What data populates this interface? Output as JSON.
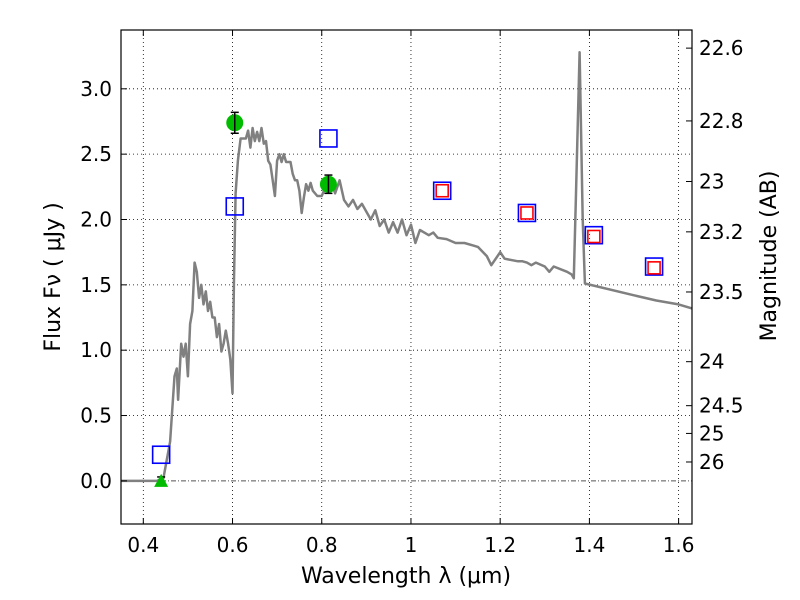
{
  "chart_data": {
    "type": "scatter",
    "xlabel": "Wavelength  λ (μm)",
    "ylabel": "Flux  Fν  ( μJy )",
    "y2label": "Magnitude (AB)",
    "xlim": [
      0.35,
      1.63
    ],
    "ylim": [
      -0.33,
      3.45
    ],
    "grid": true,
    "x_ticks": [
      {
        "v": 0.4,
        "label": "0.4"
      },
      {
        "v": 0.6,
        "label": "0.6"
      },
      {
        "v": 0.8,
        "label": "0.8"
      },
      {
        "v": 1.0,
        "label": "1"
      },
      {
        "v": 1.2,
        "label": "1.2"
      },
      {
        "v": 1.4,
        "label": "1.4"
      },
      {
        "v": 1.6,
        "label": "1.6"
      }
    ],
    "y_ticks": [
      {
        "v": 0.0,
        "label": "0.0"
      },
      {
        "v": 0.5,
        "label": "0.5"
      },
      {
        "v": 1.0,
        "label": "1.0"
      },
      {
        "v": 1.5,
        "label": "1.5"
      },
      {
        "v": 2.0,
        "label": "2.0"
      },
      {
        "v": 2.5,
        "label": "2.5"
      },
      {
        "v": 3.0,
        "label": "3.0"
      }
    ],
    "y2_ticks": [
      {
        "mag": 22.6,
        "label": "22.6"
      },
      {
        "mag": 22.8,
        "label": "22.8"
      },
      {
        "mag": 23.0,
        "label": "23"
      },
      {
        "mag": 23.2,
        "label": "23.2"
      },
      {
        "mag": 23.5,
        "label": "23.5"
      },
      {
        "mag": 24.0,
        "label": "24"
      },
      {
        "mag": 24.5,
        "label": "24.5"
      },
      {
        "mag": 25.0,
        "label": "25"
      },
      {
        "mag": 26.0,
        "label": "26"
      }
    ],
    "series": [
      {
        "name": "model_sed",
        "kind": "line",
        "color": "#808080",
        "points": [
          [
            0.35,
            0.0
          ],
          [
            0.43,
            0.0
          ],
          [
            0.445,
            0.02
          ],
          [
            0.46,
            0.3
          ],
          [
            0.47,
            0.8
          ],
          [
            0.475,
            0.86
          ],
          [
            0.478,
            0.62
          ],
          [
            0.485,
            1.05
          ],
          [
            0.49,
            0.95
          ],
          [
            0.495,
            1.05
          ],
          [
            0.5,
            0.8
          ],
          [
            0.505,
            1.2
          ],
          [
            0.51,
            1.3
          ],
          [
            0.515,
            1.67
          ],
          [
            0.52,
            1.6
          ],
          [
            0.525,
            1.4
          ],
          [
            0.53,
            1.5
          ],
          [
            0.535,
            1.35
          ],
          [
            0.54,
            1.45
          ],
          [
            0.545,
            1.3
          ],
          [
            0.55,
            1.37
          ],
          [
            0.555,
            1.25
          ],
          [
            0.56,
            1.25
          ],
          [
            0.565,
            1.1
          ],
          [
            0.57,
            1.2
          ],
          [
            0.575,
            0.99
          ],
          [
            0.58,
            1.05
          ],
          [
            0.585,
            1.15
          ],
          [
            0.59,
            1.05
          ],
          [
            0.595,
            0.93
          ],
          [
            0.6,
            0.67
          ],
          [
            0.603,
            1.5
          ],
          [
            0.607,
            2.2
          ],
          [
            0.612,
            2.45
          ],
          [
            0.618,
            2.62
          ],
          [
            0.625,
            2.62
          ],
          [
            0.63,
            2.62
          ],
          [
            0.635,
            2.68
          ],
          [
            0.64,
            2.55
          ],
          [
            0.645,
            2.7
          ],
          [
            0.65,
            2.6
          ],
          [
            0.655,
            2.67
          ],
          [
            0.66,
            2.6
          ],
          [
            0.665,
            2.7
          ],
          [
            0.67,
            2.58
          ],
          [
            0.675,
            2.6
          ],
          [
            0.68,
            2.45
          ],
          [
            0.685,
            2.42
          ],
          [
            0.69,
            2.3
          ],
          [
            0.695,
            2.18
          ],
          [
            0.7,
            2.45
          ],
          [
            0.705,
            2.5
          ],
          [
            0.71,
            2.44
          ],
          [
            0.715,
            2.5
          ],
          [
            0.72,
            2.44
          ],
          [
            0.73,
            2.44
          ],
          [
            0.735,
            2.35
          ],
          [
            0.74,
            2.3
          ],
          [
            0.745,
            2.3
          ],
          [
            0.75,
            2.22
          ],
          [
            0.755,
            2.05
          ],
          [
            0.76,
            2.17
          ],
          [
            0.765,
            2.27
          ],
          [
            0.77,
            2.22
          ],
          [
            0.775,
            2.28
          ],
          [
            0.78,
            2.22
          ],
          [
            0.79,
            2.18
          ],
          [
            0.8,
            2.18
          ],
          [
            0.81,
            2.26
          ],
          [
            0.82,
            2.3
          ],
          [
            0.83,
            2.2
          ],
          [
            0.84,
            2.3
          ],
          [
            0.85,
            2.15
          ],
          [
            0.86,
            2.1
          ],
          [
            0.87,
            2.15
          ],
          [
            0.88,
            2.08
          ],
          [
            0.89,
            2.12
          ],
          [
            0.9,
            2.06
          ],
          [
            0.91,
            2.0
          ],
          [
            0.92,
            2.07
          ],
          [
            0.93,
            1.95
          ],
          [
            0.94,
            2.0
          ],
          [
            0.95,
            1.9
          ],
          [
            0.96,
            1.98
          ],
          [
            0.97,
            1.9
          ],
          [
            0.98,
            2.0
          ],
          [
            0.99,
            1.88
          ],
          [
            1.0,
            1.96
          ],
          [
            1.01,
            1.82
          ],
          [
            1.02,
            1.92
          ],
          [
            1.03,
            1.9
          ],
          [
            1.04,
            1.88
          ],
          [
            1.05,
            1.9
          ],
          [
            1.06,
            1.86
          ],
          [
            1.08,
            1.85
          ],
          [
            1.1,
            1.82
          ],
          [
            1.12,
            1.82
          ],
          [
            1.14,
            1.8
          ],
          [
            1.15,
            1.79
          ],
          [
            1.17,
            1.72
          ],
          [
            1.18,
            1.65
          ],
          [
            1.2,
            1.75
          ],
          [
            1.21,
            1.7
          ],
          [
            1.24,
            1.68
          ],
          [
            1.25,
            1.68
          ],
          [
            1.26,
            1.67
          ],
          [
            1.27,
            1.65
          ],
          [
            1.28,
            1.67
          ],
          [
            1.3,
            1.64
          ],
          [
            1.31,
            1.6
          ],
          [
            1.32,
            1.64
          ],
          [
            1.35,
            1.6
          ],
          [
            1.36,
            1.58
          ],
          [
            1.365,
            1.55
          ],
          [
            1.37,
            2.2
          ],
          [
            1.378,
            3.28
          ],
          [
            1.385,
            2.0
          ],
          [
            1.39,
            1.51
          ],
          [
            1.5,
            1.42
          ],
          [
            1.55,
            1.38
          ],
          [
            1.6,
            1.35
          ],
          [
            1.63,
            1.32
          ]
        ]
      },
      {
        "name": "green_detections",
        "kind": "circle",
        "color": "#00bb00",
        "points": [
          {
            "x": 0.605,
            "y": 2.74,
            "err": 0.08
          },
          {
            "x": 0.815,
            "y": 2.27,
            "err": 0.07
          }
        ]
      },
      {
        "name": "green_upper_limit",
        "kind": "triangle",
        "color": "#00bb00",
        "points": [
          {
            "x": 0.44,
            "y": 0.0,
            "err": 0.03
          }
        ]
      },
      {
        "name": "blue_model_photometry",
        "kind": "square",
        "color": "#0000ff",
        "points": [
          {
            "x": 0.44,
            "y": 0.2
          },
          {
            "x": 0.605,
            "y": 2.1
          },
          {
            "x": 0.815,
            "y": 2.62
          },
          {
            "x": 1.07,
            "y": 2.22
          },
          {
            "x": 1.26,
            "y": 2.05
          },
          {
            "x": 1.41,
            "y": 1.88
          },
          {
            "x": 1.545,
            "y": 1.64
          }
        ]
      },
      {
        "name": "red_observed_photometry",
        "kind": "square",
        "color": "#ff0000",
        "points": [
          {
            "x": 1.07,
            "y": 2.22
          },
          {
            "x": 1.26,
            "y": 2.05
          },
          {
            "x": 1.41,
            "y": 1.87
          },
          {
            "x": 1.545,
            "y": 1.63
          }
        ]
      }
    ]
  }
}
